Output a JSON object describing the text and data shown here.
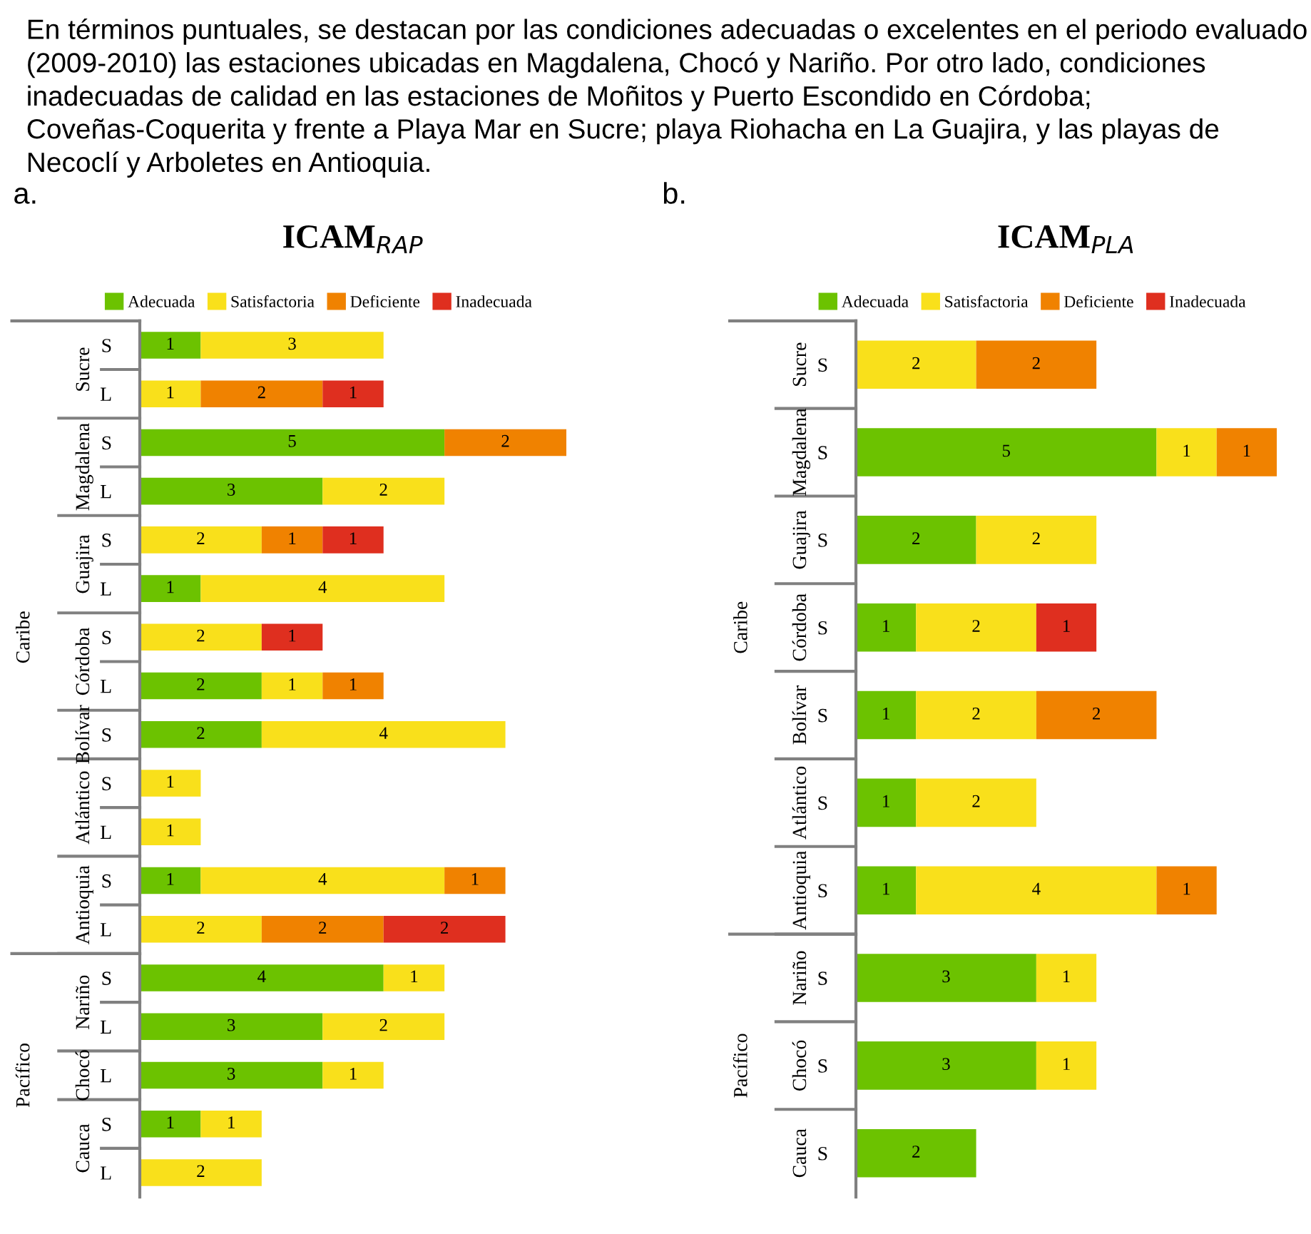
{
  "chart_data": [
    {
      "type": "bar",
      "orientation": "horizontal",
      "stacked": true,
      "data_labels": true,
      "legend": "top",
      "tick_labels": "y",
      "title": "ICAM$_{RAP}$",
      "categories": [
        "S",
        "L",
        "S",
        "L",
        "S",
        "L",
        "S",
        "L",
        "S",
        "S",
        "L",
        "S",
        "L",
        "S",
        "L",
        "L",
        "S",
        "L"
      ],
      "series": [
        {
          "name": "Adecuada",
          "color": "#6cc200",
          "values": [
            1,
            null,
            5,
            3,
            null,
            1,
            null,
            2,
            2,
            null,
            null,
            1,
            null,
            4,
            3,
            3,
            1,
            null
          ]
        },
        {
          "name": "Satisfactoria",
          "color": "#f9e01b",
          "values": [
            3,
            1,
            null,
            2,
            2,
            4,
            2,
            1,
            4,
            1,
            1,
            4,
            2,
            1,
            2,
            1,
            1,
            2
          ]
        },
        {
          "name": "Deficiente",
          "color": "#f08200",
          "values": [
            null,
            2,
            2,
            null,
            1,
            null,
            null,
            1,
            null,
            null,
            null,
            1,
            2,
            null,
            null,
            null,
            null,
            null
          ]
        },
        {
          "name": "Inadecuada",
          "color": "#df2f1f",
          "values": [
            null,
            1,
            null,
            null,
            1,
            null,
            1,
            null,
            null,
            null,
            null,
            null,
            2,
            null,
            null,
            null,
            null,
            null
          ]
        }
      ],
      "annotations": [
        "a.",
        "Sucre",
        "Magdalena",
        "Guajira",
        "Córdoba",
        "Bolívar",
        "Atlántico",
        "Antioquia",
        "Nariño",
        "Chocó",
        "Cauca",
        "Caribe",
        "Pacífico",
        "En términos puntuales, se destacan por las condiciones adecuadas o excelentes en el periodo evaluado (2009-2010) las estaciones ubicadas en Magdalena, Chocó y Nariño. Por otro lado, condiciones inadecuadas de calidad en las estaciones de Moñitos y Puerto Escondido en Córdoba; Coveñas-Coquerita y frente a Playa Mar en Sucre; playa Riohacha en La Guajira, y las playas de Necoclí y Arboletes en Antioquia."
      ]
    },
    {
      "type": "bar",
      "orientation": "horizontal",
      "stacked": true,
      "data_labels": true,
      "legend": "top",
      "tick_labels": "y",
      "title": "ICAM$_{PLA}$",
      "categories": [
        "S",
        "S",
        "S",
        "S",
        "S",
        "S",
        "S",
        "S",
        "S",
        "S"
      ],
      "series": [
        {
          "name": "Adecuada",
          "color": "#6cc200",
          "values": [
            null,
            5,
            2,
            1,
            1,
            1,
            1,
            3,
            3,
            2
          ]
        },
        {
          "name": "Satisfactoria",
          "color": "#f9e01b",
          "values": [
            2,
            1,
            2,
            2,
            2,
            2,
            4,
            1,
            1,
            null
          ]
        },
        {
          "name": "Deficiente",
          "color": "#f08200",
          "values": [
            2,
            1,
            null,
            null,
            2,
            null,
            1,
            null,
            null,
            null
          ]
        },
        {
          "name": "Inadecuada",
          "color": "#df2f1f",
          "values": [
            null,
            null,
            null,
            1,
            null,
            null,
            null,
            null,
            null,
            null
          ]
        }
      ],
      "annotations": [
        "b.",
        "Sucre",
        "Magdalena",
        "Guajira",
        "Córdoba",
        "Bolívar",
        "Atlántico",
        "Antioquia",
        "Nariño",
        "Chocó",
        "Cauca",
        "Caribe",
        "Pacífico"
      ]
    }
  ]
}
